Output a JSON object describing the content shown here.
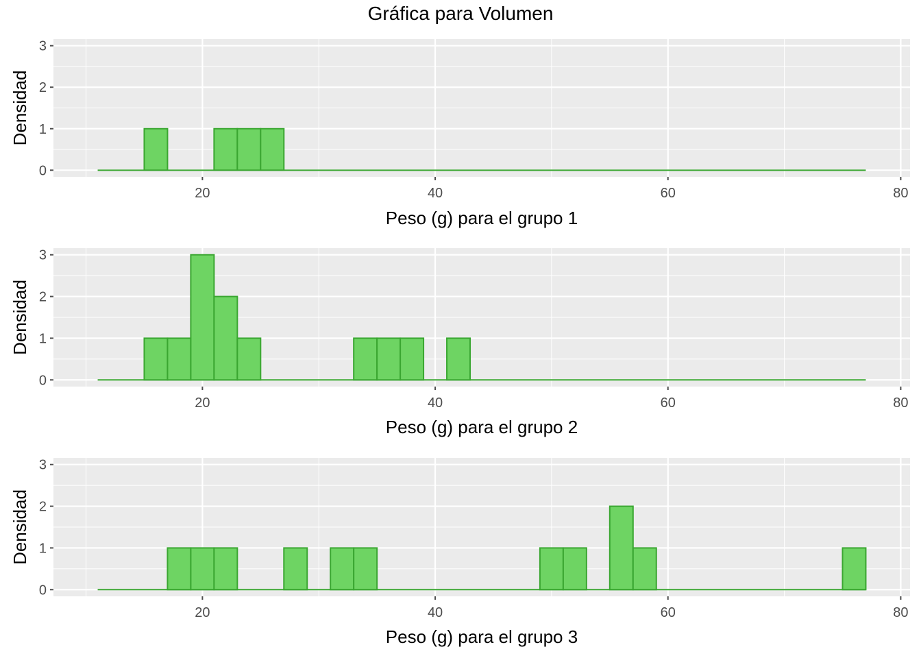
{
  "title": "Gráfica para Volumen",
  "colors": {
    "panel": "#EBEBEB",
    "grid": "#FFFFFF",
    "bar_fill": "#6ED463",
    "bar_stroke": "#3AA631",
    "tick": "#4D4D4D"
  },
  "chart_data": [
    {
      "type": "bar",
      "title": "",
      "xlabel": "Peso (g) para el grupo 1",
      "ylabel": "Densidad",
      "xlim": [
        7.2,
        80.8
      ],
      "ylim": [
        -0.16,
        3.16
      ],
      "xticks": [
        20,
        40,
        60,
        80
      ],
      "yticks": [
        0,
        1,
        2,
        3
      ],
      "grid": true,
      "bin_width": 2,
      "range": [
        11,
        77
      ],
      "bins": [
        {
          "x0": 15,
          "x1": 17,
          "count": 1
        },
        {
          "x0": 21,
          "x1": 23,
          "count": 1
        },
        {
          "x0": 23,
          "x1": 25,
          "count": 1
        },
        {
          "x0": 25,
          "x1": 27,
          "count": 1
        }
      ]
    },
    {
      "type": "bar",
      "title": "",
      "xlabel": "Peso (g) para el grupo 2",
      "ylabel": "Densidad",
      "xlim": [
        7.2,
        80.8
      ],
      "ylim": [
        -0.16,
        3.16
      ],
      "xticks": [
        20,
        40,
        60,
        80
      ],
      "yticks": [
        0,
        1,
        2,
        3
      ],
      "grid": true,
      "bin_width": 2,
      "range": [
        11,
        77
      ],
      "bins": [
        {
          "x0": 15,
          "x1": 17,
          "count": 1
        },
        {
          "x0": 17,
          "x1": 19,
          "count": 1
        },
        {
          "x0": 19,
          "x1": 21,
          "count": 3
        },
        {
          "x0": 21,
          "x1": 23,
          "count": 2
        },
        {
          "x0": 23,
          "x1": 25,
          "count": 1
        },
        {
          "x0": 33,
          "x1": 35,
          "count": 1
        },
        {
          "x0": 35,
          "x1": 37,
          "count": 1
        },
        {
          "x0": 37,
          "x1": 39,
          "count": 1
        },
        {
          "x0": 41,
          "x1": 43,
          "count": 1
        }
      ]
    },
    {
      "type": "bar",
      "title": "",
      "xlabel": "Peso (g) para el grupo 3",
      "ylabel": "Densidad",
      "xlim": [
        7.2,
        80.8
      ],
      "ylim": [
        -0.16,
        3.16
      ],
      "xticks": [
        20,
        40,
        60,
        80
      ],
      "yticks": [
        0,
        1,
        2,
        3
      ],
      "grid": true,
      "bin_width": 2,
      "range": [
        11,
        77
      ],
      "bins": [
        {
          "x0": 17,
          "x1": 19,
          "count": 1
        },
        {
          "x0": 19,
          "x1": 21,
          "count": 1
        },
        {
          "x0": 21,
          "x1": 23,
          "count": 1
        },
        {
          "x0": 27,
          "x1": 29,
          "count": 1
        },
        {
          "x0": 31,
          "x1": 33,
          "count": 1
        },
        {
          "x0": 33,
          "x1": 35,
          "count": 1
        },
        {
          "x0": 49,
          "x1": 51,
          "count": 1
        },
        {
          "x0": 51,
          "x1": 53,
          "count": 1
        },
        {
          "x0": 55,
          "x1": 57,
          "count": 2
        },
        {
          "x0": 57,
          "x1": 59,
          "count": 1
        },
        {
          "x0": 75,
          "x1": 77,
          "count": 1
        }
      ]
    }
  ]
}
